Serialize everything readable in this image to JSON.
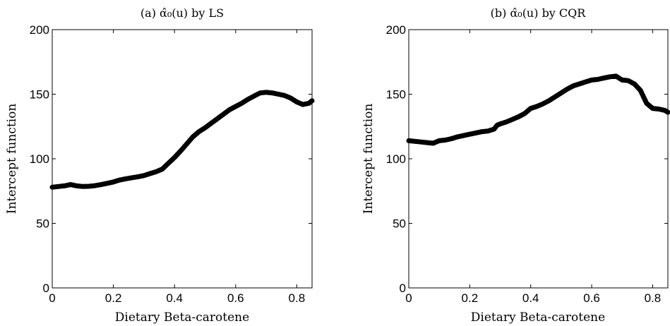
{
  "chart_data": [
    {
      "type": "line",
      "title": "(a) α̂₀(u) by LS",
      "xlabel": "Dietary Beta-carotene",
      "ylabel": "Intercept function",
      "xlim": [
        0,
        0.85
      ],
      "ylim": [
        0,
        200
      ],
      "xticks": [
        "0",
        "0.2",
        "0.4",
        "0.6",
        "0.8"
      ],
      "yticks": [
        "0",
        "50",
        "100",
        "150",
        "200"
      ],
      "grid": false,
      "series": [
        {
          "x": [
            0.0,
            0.02,
            0.04,
            0.06,
            0.08,
            0.1,
            0.12,
            0.14,
            0.16,
            0.18,
            0.2,
            0.22,
            0.24,
            0.26,
            0.28,
            0.3,
            0.32,
            0.34,
            0.36,
            0.38,
            0.4,
            0.42,
            0.44,
            0.46,
            0.48,
            0.5,
            0.52,
            0.54,
            0.56,
            0.58,
            0.6,
            0.62,
            0.64,
            0.66,
            0.68,
            0.7,
            0.72,
            0.74,
            0.76,
            0.78,
            0.8,
            0.82,
            0.84,
            0.85
          ],
          "y": [
            78,
            78.5,
            79,
            80,
            79,
            78.5,
            78.7,
            79.2,
            80,
            81,
            82,
            83.5,
            84.5,
            85.3,
            86,
            87,
            88.5,
            90,
            92,
            96.5,
            101,
            106,
            111.5,
            117,
            121,
            124,
            127.5,
            131,
            134.5,
            138,
            140.5,
            143,
            146,
            148.5,
            151,
            151.5,
            151,
            150,
            149,
            147,
            144,
            142,
            143,
            145
          ]
        }
      ]
    },
    {
      "type": "line",
      "title": "(b) α̂₀(u) by CQR",
      "xlabel": "Dietary Beta-carotene",
      "ylabel": "Intercept function",
      "xlim": [
        0,
        0.85
      ],
      "ylim": [
        0,
        200
      ],
      "xticks": [
        "0",
        "0.2",
        "0.4",
        "0.6",
        "0.8"
      ],
      "yticks": [
        "0",
        "50",
        "100",
        "150",
        "200"
      ],
      "grid": false,
      "series": [
        {
          "x": [
            0.0,
            0.02,
            0.04,
            0.06,
            0.08,
            0.1,
            0.12,
            0.14,
            0.16,
            0.18,
            0.2,
            0.22,
            0.24,
            0.26,
            0.28,
            0.29,
            0.3,
            0.32,
            0.34,
            0.36,
            0.38,
            0.4,
            0.42,
            0.44,
            0.46,
            0.48,
            0.5,
            0.52,
            0.54,
            0.56,
            0.58,
            0.6,
            0.62,
            0.64,
            0.66,
            0.68,
            0.7,
            0.72,
            0.74,
            0.76,
            0.78,
            0.8,
            0.82,
            0.84,
            0.85
          ],
          "y": [
            114,
            113.5,
            113,
            112.5,
            112,
            114,
            114.5,
            115.5,
            117,
            118,
            119,
            120,
            121,
            121.5,
            123,
            126,
            127,
            128.5,
            130.5,
            132.5,
            135,
            139,
            140.5,
            142.5,
            145,
            148,
            151,
            154,
            156.5,
            158,
            159.5,
            161,
            161.5,
            162.5,
            163.5,
            164,
            161,
            160.5,
            158,
            153,
            143,
            139,
            138.5,
            137.5,
            136
          ]
        }
      ]
    }
  ]
}
